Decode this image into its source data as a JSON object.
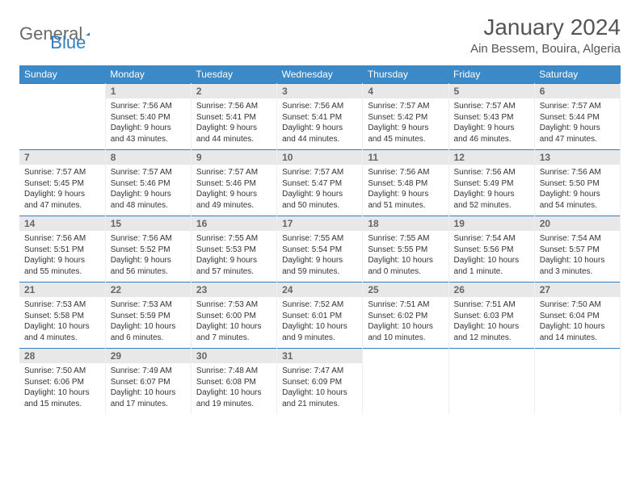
{
  "logo": {
    "text1": "General",
    "text2": "Blue",
    "shape_color": "#2f7fc0"
  },
  "title": "January 2024",
  "location": "Ain Bessem, Bouira, Algeria",
  "colors": {
    "header_bg": "#3b89c7",
    "header_text": "#ffffff",
    "daynum_bg": "#e8e8e8",
    "row_border": "#2f7fc0"
  },
  "weekdays": [
    "Sunday",
    "Monday",
    "Tuesday",
    "Wednesday",
    "Thursday",
    "Friday",
    "Saturday"
  ],
  "weeks": [
    [
      null,
      {
        "n": "1",
        "sr": "7:56 AM",
        "ss": "5:40 PM",
        "dl": "9 hours and 43 minutes."
      },
      {
        "n": "2",
        "sr": "7:56 AM",
        "ss": "5:41 PM",
        "dl": "9 hours and 44 minutes."
      },
      {
        "n": "3",
        "sr": "7:56 AM",
        "ss": "5:41 PM",
        "dl": "9 hours and 44 minutes."
      },
      {
        "n": "4",
        "sr": "7:57 AM",
        "ss": "5:42 PM",
        "dl": "9 hours and 45 minutes."
      },
      {
        "n": "5",
        "sr": "7:57 AM",
        "ss": "5:43 PM",
        "dl": "9 hours and 46 minutes."
      },
      {
        "n": "6",
        "sr": "7:57 AM",
        "ss": "5:44 PM",
        "dl": "9 hours and 47 minutes."
      }
    ],
    [
      {
        "n": "7",
        "sr": "7:57 AM",
        "ss": "5:45 PM",
        "dl": "9 hours and 47 minutes."
      },
      {
        "n": "8",
        "sr": "7:57 AM",
        "ss": "5:46 PM",
        "dl": "9 hours and 48 minutes."
      },
      {
        "n": "9",
        "sr": "7:57 AM",
        "ss": "5:46 PM",
        "dl": "9 hours and 49 minutes."
      },
      {
        "n": "10",
        "sr": "7:57 AM",
        "ss": "5:47 PM",
        "dl": "9 hours and 50 minutes."
      },
      {
        "n": "11",
        "sr": "7:56 AM",
        "ss": "5:48 PM",
        "dl": "9 hours and 51 minutes."
      },
      {
        "n": "12",
        "sr": "7:56 AM",
        "ss": "5:49 PM",
        "dl": "9 hours and 52 minutes."
      },
      {
        "n": "13",
        "sr": "7:56 AM",
        "ss": "5:50 PM",
        "dl": "9 hours and 54 minutes."
      }
    ],
    [
      {
        "n": "14",
        "sr": "7:56 AM",
        "ss": "5:51 PM",
        "dl": "9 hours and 55 minutes."
      },
      {
        "n": "15",
        "sr": "7:56 AM",
        "ss": "5:52 PM",
        "dl": "9 hours and 56 minutes."
      },
      {
        "n": "16",
        "sr": "7:55 AM",
        "ss": "5:53 PM",
        "dl": "9 hours and 57 minutes."
      },
      {
        "n": "17",
        "sr": "7:55 AM",
        "ss": "5:54 PM",
        "dl": "9 hours and 59 minutes."
      },
      {
        "n": "18",
        "sr": "7:55 AM",
        "ss": "5:55 PM",
        "dl": "10 hours and 0 minutes."
      },
      {
        "n": "19",
        "sr": "7:54 AM",
        "ss": "5:56 PM",
        "dl": "10 hours and 1 minute."
      },
      {
        "n": "20",
        "sr": "7:54 AM",
        "ss": "5:57 PM",
        "dl": "10 hours and 3 minutes."
      }
    ],
    [
      {
        "n": "21",
        "sr": "7:53 AM",
        "ss": "5:58 PM",
        "dl": "10 hours and 4 minutes."
      },
      {
        "n": "22",
        "sr": "7:53 AM",
        "ss": "5:59 PM",
        "dl": "10 hours and 6 minutes."
      },
      {
        "n": "23",
        "sr": "7:53 AM",
        "ss": "6:00 PM",
        "dl": "10 hours and 7 minutes."
      },
      {
        "n": "24",
        "sr": "7:52 AM",
        "ss": "6:01 PM",
        "dl": "10 hours and 9 minutes."
      },
      {
        "n": "25",
        "sr": "7:51 AM",
        "ss": "6:02 PM",
        "dl": "10 hours and 10 minutes."
      },
      {
        "n": "26",
        "sr": "7:51 AM",
        "ss": "6:03 PM",
        "dl": "10 hours and 12 minutes."
      },
      {
        "n": "27",
        "sr": "7:50 AM",
        "ss": "6:04 PM",
        "dl": "10 hours and 14 minutes."
      }
    ],
    [
      {
        "n": "28",
        "sr": "7:50 AM",
        "ss": "6:06 PM",
        "dl": "10 hours and 15 minutes."
      },
      {
        "n": "29",
        "sr": "7:49 AM",
        "ss": "6:07 PM",
        "dl": "10 hours and 17 minutes."
      },
      {
        "n": "30",
        "sr": "7:48 AM",
        "ss": "6:08 PM",
        "dl": "10 hours and 19 minutes."
      },
      {
        "n": "31",
        "sr": "7:47 AM",
        "ss": "6:09 PM",
        "dl": "10 hours and 21 minutes."
      },
      null,
      null,
      null
    ]
  ],
  "labels": {
    "sunrise": "Sunrise:",
    "sunset": "Sunset:",
    "daylight": "Daylight:"
  }
}
